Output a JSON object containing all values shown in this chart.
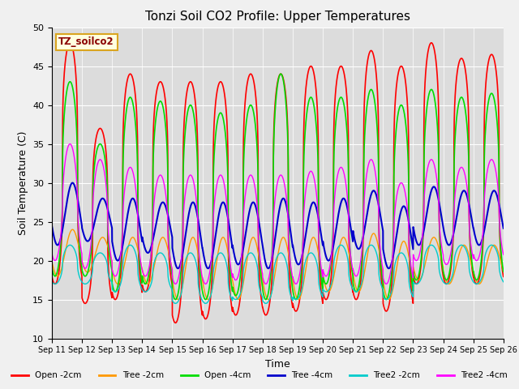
{
  "title": "Tonzi Soil CO2 Profile: Upper Temperatures",
  "xlabel": "Time",
  "ylabel": "Soil Temperature (C)",
  "ylim": [
    10,
    50
  ],
  "legend_label": "TZ_soilco2",
  "series_labels": [
    "Open -2cm",
    "Tree -2cm",
    "Open -4cm",
    "Tree -4cm",
    "Tree2 -2cm",
    "Tree2 -4cm"
  ],
  "series_colors": [
    "#ff0000",
    "#ff9900",
    "#00dd00",
    "#0000cc",
    "#00cccc",
    "#ff00ff"
  ],
  "x_tick_labels": [
    "Sep 11",
    "Sep 12",
    "Sep 13",
    "Sep 14",
    "Sep 15",
    "Sep 16",
    "Sep 17",
    "Sep 18",
    "Sep 19",
    "Sep 20",
    "Sep 21",
    "Sep 22",
    "Sep 23",
    "Sep 24",
    "Sep 25",
    "Sep 26"
  ],
  "background_color": "#dcdcdc",
  "days": 15,
  "points_per_day": 240,
  "open2_peaks": [
    48,
    37,
    44,
    43,
    43,
    43,
    44,
    44,
    45,
    45,
    47,
    45,
    48,
    46,
    46.5
  ],
  "open2_troughs": [
    17,
    14.5,
    15,
    16,
    12,
    12.5,
    13,
    13,
    13.5,
    15,
    15,
    13.5,
    17,
    17,
    17
  ],
  "open4_peaks": [
    43,
    35,
    41,
    40.5,
    40,
    39,
    40,
    44,
    41,
    41,
    42,
    40,
    42,
    41,
    41.5
  ],
  "open4_troughs": [
    18,
    18,
    16,
    17,
    15,
    15,
    15.5,
    15,
    15,
    17,
    16,
    15,
    17.5,
    17.5,
    17.5
  ],
  "tree2_peaks": [
    24,
    23,
    23,
    23,
    23,
    23,
    23,
    23,
    23,
    23,
    23.5,
    22.5,
    23,
    22,
    22
  ],
  "tree2_troughs": [
    18,
    18.5,
    17,
    17,
    15,
    15,
    15,
    15,
    15,
    16,
    16,
    15,
    17.5,
    17,
    17
  ],
  "tree4_peaks": [
    30,
    28,
    28,
    27.5,
    27.5,
    27.5,
    27.5,
    28,
    27.5,
    28,
    29,
    27,
    29.5,
    29,
    29
  ],
  "tree4_troughs": [
    22,
    22.5,
    20,
    21,
    19,
    19,
    19.5,
    19,
    19.5,
    20,
    21.5,
    19,
    22,
    22,
    22
  ],
  "tree2_2_peaks": [
    22,
    21,
    22,
    21,
    21,
    21,
    21,
    21,
    21,
    22,
    22,
    21,
    22,
    22,
    22
  ],
  "tree2_2_troughs": [
    17,
    17,
    16,
    16,
    14.5,
    14.5,
    15,
    14.5,
    15,
    16,
    16,
    15,
    17,
    17,
    17
  ],
  "tree2_4_peaks": [
    35,
    33,
    32,
    31,
    31,
    31,
    31,
    31,
    31.5,
    32,
    33,
    30,
    33,
    32,
    33
  ],
  "tree2_4_troughs": [
    20,
    19,
    18,
    18,
    17,
    17,
    17.5,
    17,
    17,
    18,
    18,
    17,
    20,
    19.5,
    20
  ]
}
